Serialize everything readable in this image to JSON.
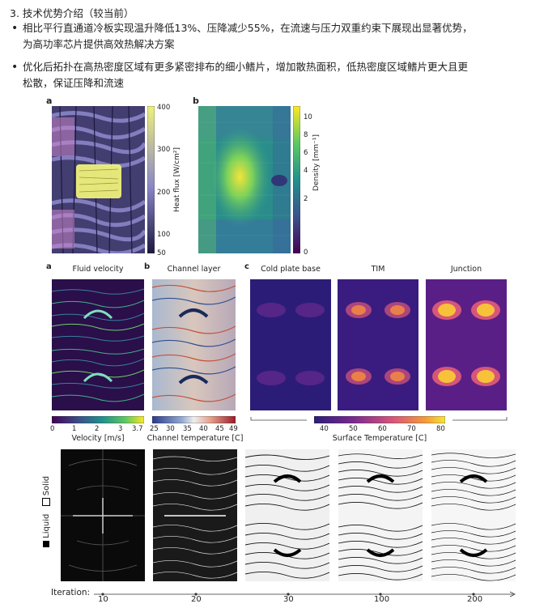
{
  "section": {
    "heading": "3. 技术优势介绍（较当前）",
    "bullets": [
      "相比平行直通道冷板实现温升降低13%、压降减少55%，在流速与压力双重约束下展现出显著优势，",
      "为高功率芯片提供高效热解决方案",
      "优化后拓扑在高热密度区域有更多紧密排布的细小鳍片，增加散热面积，低热密度区域鳍片更大且更",
      "松散，保证压降和流速"
    ]
  },
  "figure_top": {
    "panel_a": {
      "label": "a",
      "colorbar_label": "Heat flux [W/cm²]",
      "ticks": [
        "400",
        "300",
        "200",
        "100",
        "50"
      ]
    },
    "panel_b": {
      "label": "b",
      "colorbar_label": "Density [mm⁻¹]",
      "ticks": [
        "10",
        "8",
        "6",
        "4",
        "2",
        "0"
      ]
    }
  },
  "figure_mid": {
    "panel_a": {
      "label": "a",
      "title": "Fluid velocity",
      "colorbar_label": "Velocity [m/s]",
      "ticks": [
        "0",
        "1",
        "2",
        "3",
        "3.7"
      ]
    },
    "panel_b": {
      "label": "b",
      "title": "Channel layer",
      "colorbar_label": "Channel temperature [C]",
      "ticks": [
        "25",
        "30",
        "35",
        "40",
        "45",
        "49"
      ]
    },
    "panel_c": {
      "label": "c",
      "titles": [
        "Cold plate base",
        "TIM",
        "Junction"
      ],
      "colorbar_label": "Surface Temperature [C]",
      "ticks": [
        "40",
        "50",
        "60",
        "70",
        "80"
      ]
    }
  },
  "figure_bottom": {
    "legend_solid": "Solid",
    "legend_liquid": "Liquid",
    "iteration_label": "Iteration:",
    "iterations": [
      "10",
      "20",
      "30",
      "100",
      "200"
    ]
  },
  "colors": {
    "purple": "#8a86c8",
    "dark": "#1c1840",
    "yellow": "#eef07a",
    "pink": "#c883c9"
  }
}
